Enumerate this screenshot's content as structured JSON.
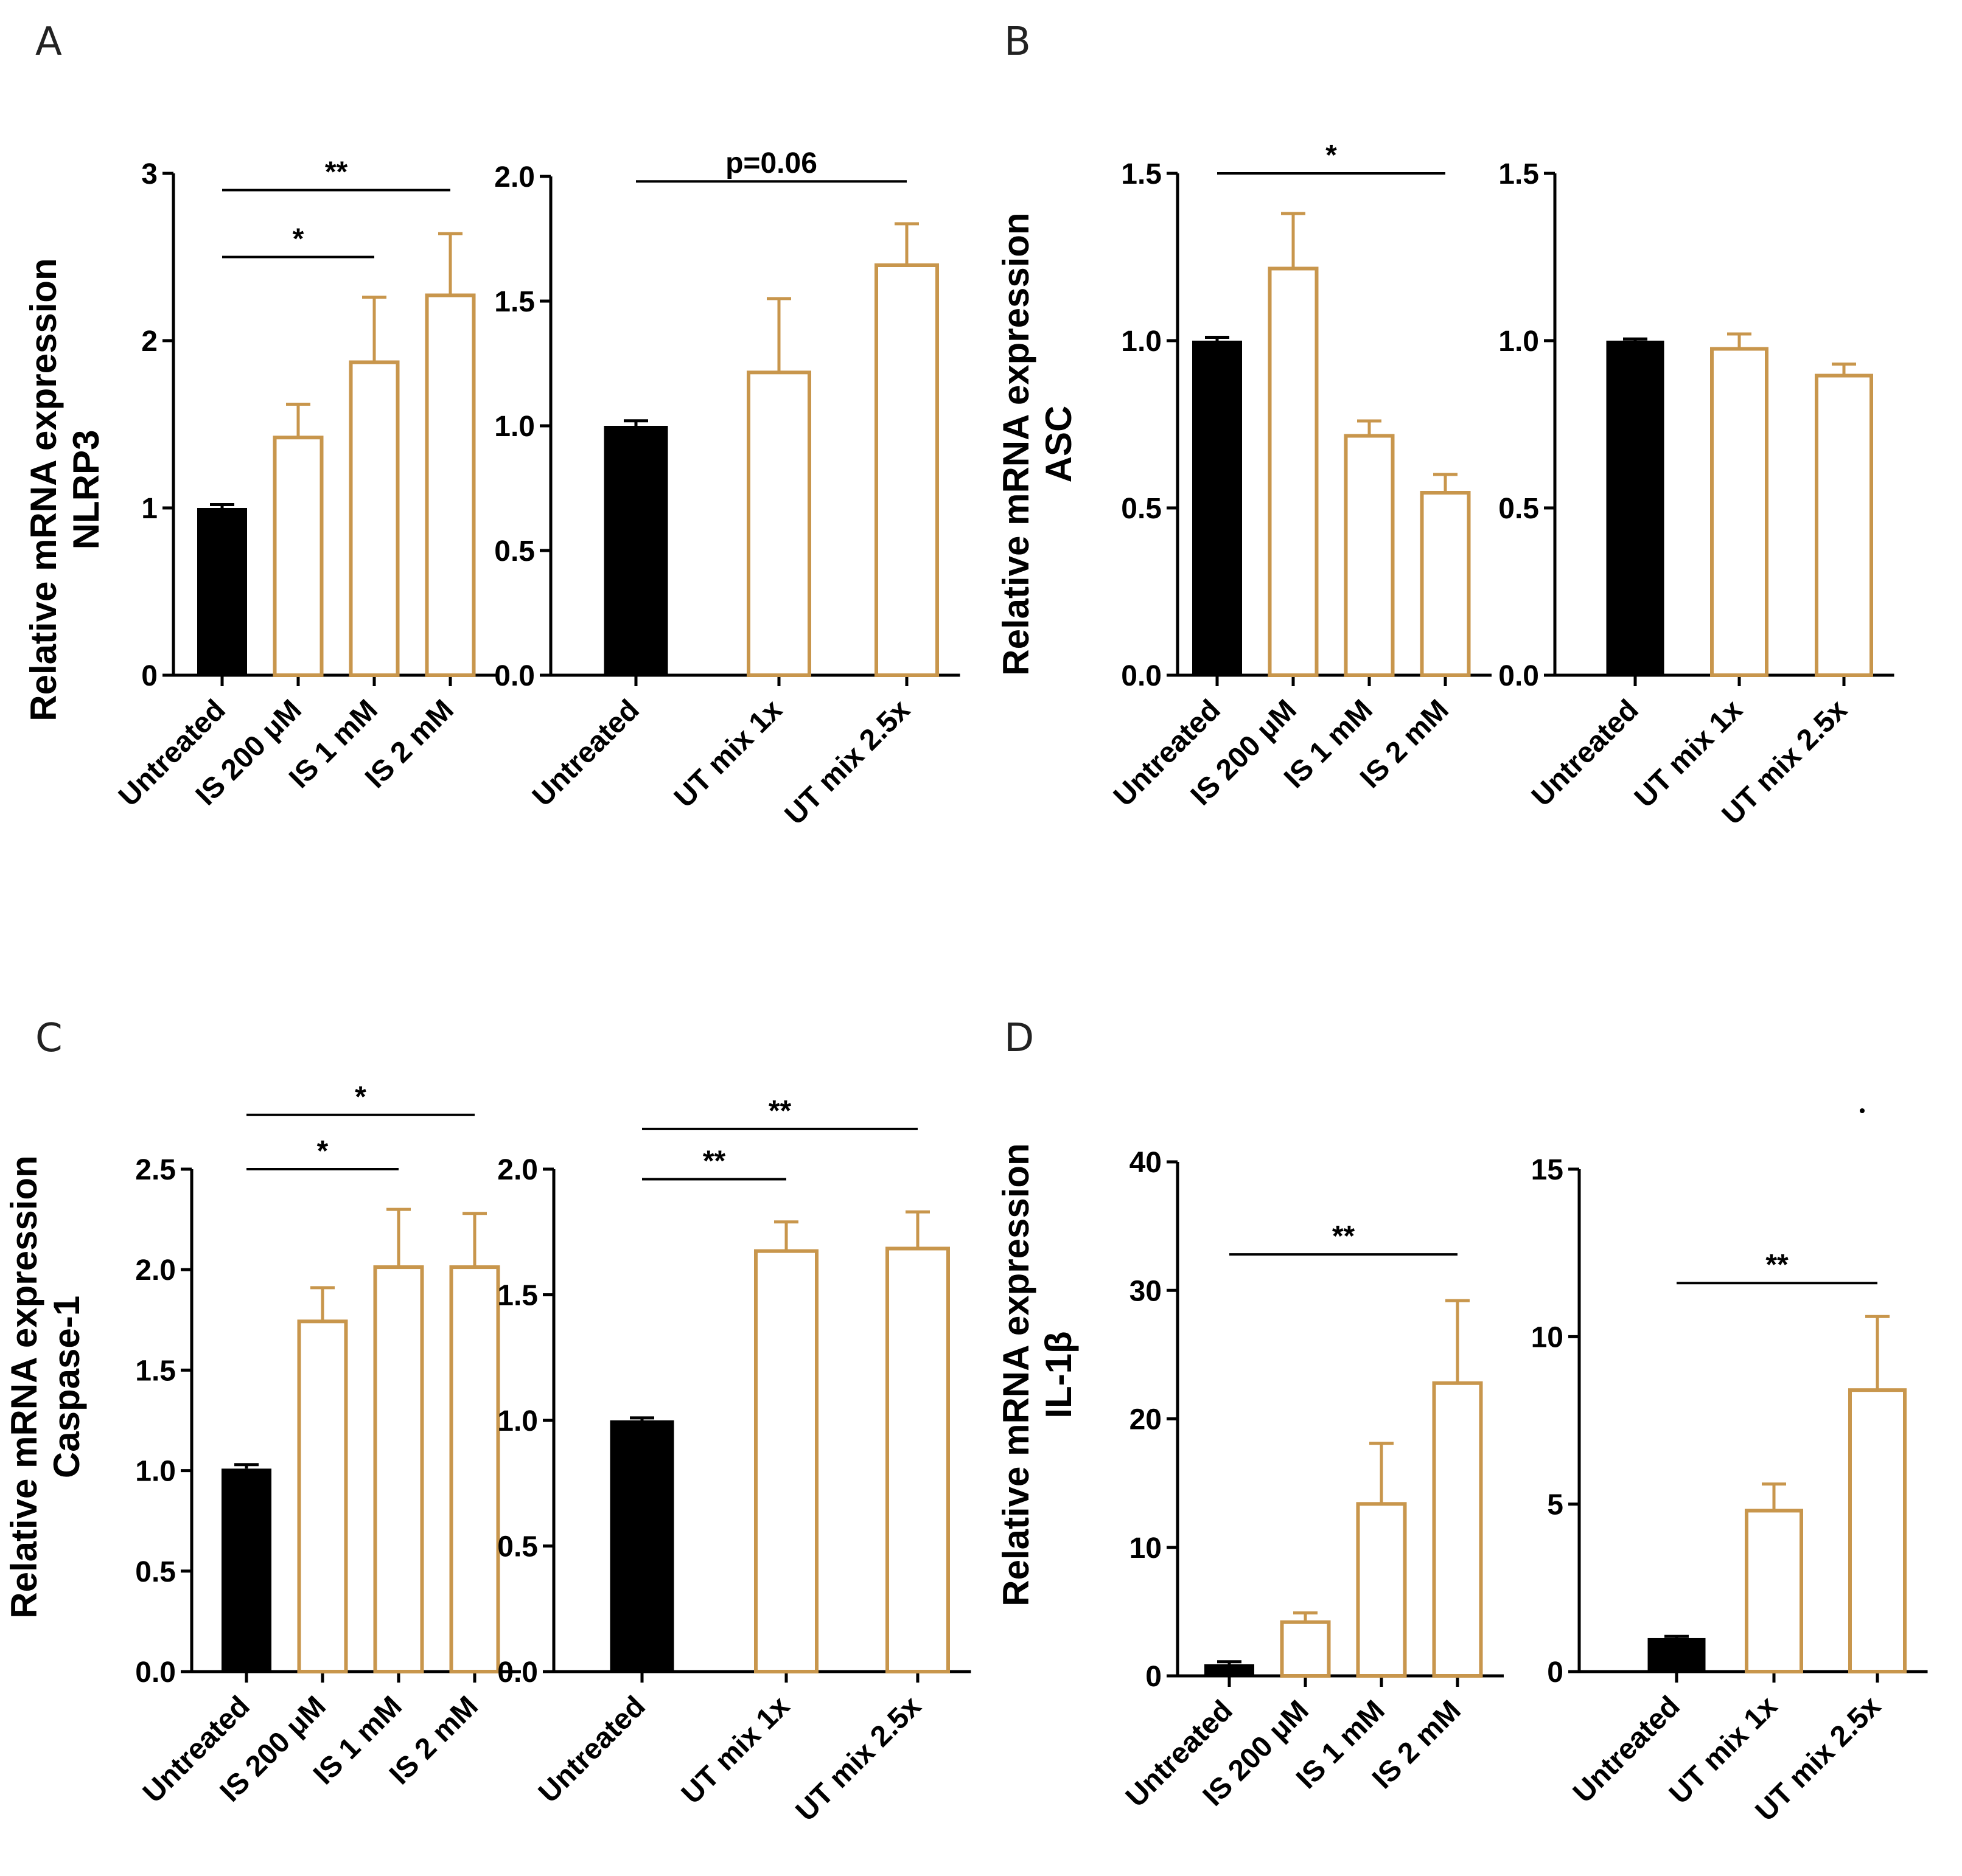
{
  "colors": {
    "control": "#000000",
    "treated": "#C8964C",
    "text": "#000000"
  },
  "panels": [
    {
      "letter": "A",
      "ylabel_line1": "Relative mRNA expression",
      "ylabel_line2": "NLRP3"
    },
    {
      "letter": "B",
      "ylabel_line1": "Relative mRNA expression",
      "ylabel_line2": "ASC"
    },
    {
      "letter": "C",
      "ylabel_line1": "Relative mRNA expression",
      "ylabel_line2": "Caspase-1"
    },
    {
      "letter": "D",
      "ylabel_line1": "Relative mRNA expression",
      "ylabel_line2": "IL-1β"
    }
  ],
  "chart_data": [
    {
      "panel": "A",
      "type": "bar",
      "ylabel": "Relative mRNA expression NLRP3",
      "categories": [
        "Untreated",
        "IS 200 μM",
        "IS 1 mM",
        "IS 2 mM"
      ],
      "values": [
        1.0,
        1.43,
        1.88,
        2.28
      ],
      "errors": [
        0.02,
        0.19,
        0.38,
        0.36
      ],
      "ylim": [
        0,
        3
      ],
      "yticks": [
        0,
        1,
        2,
        3
      ],
      "ytick_labels": [
        "0",
        "1",
        "2",
        "3"
      ],
      "significance": [
        {
          "from": 0,
          "to": 3,
          "label": "**",
          "y": 2.9
        },
        {
          "from": 0,
          "to": 2,
          "label": "*",
          "y": 2.5
        }
      ]
    },
    {
      "panel": "A",
      "type": "bar",
      "categories": [
        "Untreated",
        "UT mix 1x",
        "UT mix 2.5x"
      ],
      "values": [
        1.0,
        1.22,
        1.65
      ],
      "errors": [
        0.02,
        0.29,
        0.16
      ],
      "ylim": [
        0,
        2.0
      ],
      "yticks": [
        0,
        0.5,
        1.0,
        1.5,
        2.0
      ],
      "ytick_labels": [
        "0.0",
        "0.5",
        "1.0",
        "1.5",
        "2.0"
      ],
      "significance": [
        {
          "from": 0,
          "to": 2,
          "label": "p=0.06",
          "y": 1.98
        }
      ]
    },
    {
      "panel": "B",
      "type": "bar",
      "ylabel": "Relative mRNA expression ASC",
      "categories": [
        "Untreated",
        "IS 200 μM",
        "IS 1 mM",
        "IS 2 mM"
      ],
      "values": [
        1.0,
        1.22,
        0.72,
        0.55
      ],
      "errors": [
        0.01,
        0.16,
        0.04,
        0.05
      ],
      "ylim": [
        0,
        1.5
      ],
      "yticks": [
        0,
        0.5,
        1.0,
        1.5
      ],
      "ytick_labels": [
        "0.0",
        "0.5",
        "1.0",
        "1.5"
      ],
      "significance": [
        {
          "from": 0,
          "to": 3,
          "label": "*",
          "y": 1.5
        }
      ]
    },
    {
      "panel": "B",
      "type": "bar",
      "categories": [
        "Untreated",
        "UT mix 1x",
        "UT mix 2.5x"
      ],
      "values": [
        1.0,
        0.98,
        0.9
      ],
      "errors": [
        0.005,
        0.04,
        0.03
      ],
      "ylim": [
        0,
        1.5
      ],
      "yticks": [
        0,
        0.5,
        1.0,
        1.5
      ],
      "ytick_labels": [
        "0.0",
        "0.5",
        "1.0",
        "1.5"
      ],
      "significance": []
    },
    {
      "panel": "C",
      "type": "bar",
      "ylabel": "Relative mRNA expression Caspase-1",
      "categories": [
        "Untreated",
        "IS 200 μM",
        "IS 1 mM",
        "IS 2 mM"
      ],
      "values": [
        1.01,
        1.75,
        2.02,
        2.02
      ],
      "errors": [
        0.02,
        0.16,
        0.28,
        0.26
      ],
      "ylim": [
        0,
        2.5
      ],
      "yticks": [
        0,
        0.5,
        1.0,
        1.5,
        2.0,
        2.5
      ],
      "ytick_labels": [
        "0.0",
        "0.5",
        "1.0",
        "1.5",
        "2.0",
        "2.5"
      ],
      "significance": [
        {
          "from": 0,
          "to": 3,
          "label": "*",
          "y": 2.77
        },
        {
          "from": 0,
          "to": 2,
          "label": "*",
          "y": 2.5
        }
      ]
    },
    {
      "panel": "C",
      "type": "bar",
      "categories": [
        "Untreated",
        "UT mix 1x",
        "UT mix 2.5x"
      ],
      "values": [
        1.0,
        1.68,
        1.69
      ],
      "errors": [
        0.01,
        0.11,
        0.14
      ],
      "ylim": [
        0,
        2.0
      ],
      "yticks": [
        0,
        0.5,
        1.0,
        1.5,
        2.0
      ],
      "ytick_labels": [
        "0.0",
        "0.5",
        "1.0",
        "1.5",
        "2.0"
      ],
      "significance": [
        {
          "from": 0,
          "to": 2,
          "label": "**",
          "y": 2.16
        },
        {
          "from": 0,
          "to": 1,
          "label": "**",
          "y": 1.96
        }
      ]
    },
    {
      "panel": "D",
      "type": "bar",
      "ylabel": "Relative mRNA expression IL-1β",
      "categories": [
        "Untreated",
        "IS 200 μM",
        "IS 1 mM",
        "IS 2 mM"
      ],
      "values": [
        0.9,
        4.3,
        13.5,
        22.9
      ],
      "errors": [
        0.2,
        0.6,
        4.6,
        6.3
      ],
      "ylim": [
        0,
        40
      ],
      "yticks": [
        0,
        10,
        20,
        30,
        40
      ],
      "ytick_labels": [
        "0",
        "10",
        "20",
        "30",
        "40"
      ],
      "significance": [
        {
          "from": 0,
          "to": 3,
          "label": "**",
          "y": 32.8
        }
      ]
    },
    {
      "panel": "D",
      "type": "bar",
      "categories": [
        "Untreated",
        "UT mix 1x",
        "UT mix 2.5x"
      ],
      "values": [
        1.0,
        4.85,
        8.45
      ],
      "errors": [
        0.05,
        0.75,
        2.15
      ],
      "ylim": [
        0,
        15
      ],
      "yticks": [
        0,
        5,
        10,
        15
      ],
      "ytick_labels": [
        "0",
        "5",
        "10",
        "15"
      ],
      "significance": [
        {
          "from": 0,
          "to": 2,
          "label": "**",
          "y": 11.6
        }
      ]
    }
  ]
}
